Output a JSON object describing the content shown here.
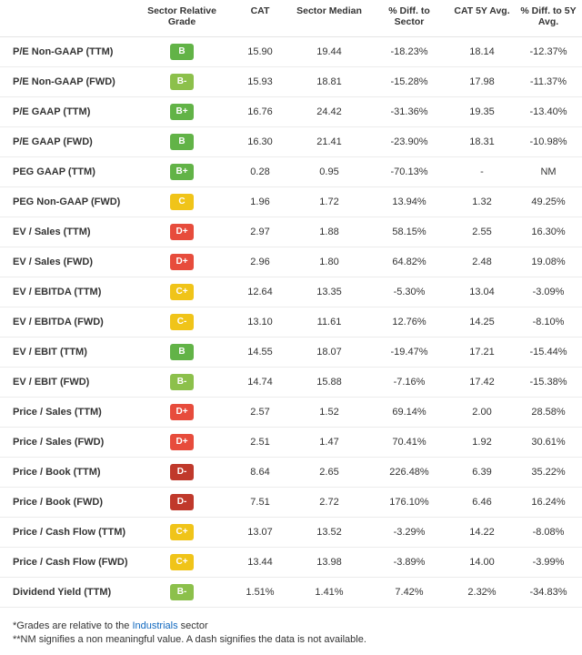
{
  "grade_colors": {
    "A": "#1a9850",
    "A-": "#1a9850",
    "A+": "#1a9850",
    "B": "#62b347",
    "B+": "#62b347",
    "B-": "#8cc04b",
    "C": "#f0c419",
    "C+": "#f0c419",
    "C-": "#f0c419",
    "D": "#e74c3c",
    "D+": "#e74c3c",
    "D-": "#c0392b",
    "F": "#a93226"
  },
  "columns": {
    "metric": "",
    "grade": "Sector Relative Grade",
    "cat": "CAT",
    "median": "Sector Median",
    "diff_sector": "% Diff. to Sector",
    "cat_5y": "CAT 5Y Avg.",
    "diff_5y": "% Diff. to 5Y Avg."
  },
  "col_widths": {
    "metric": 146,
    "grade": 108,
    "cat": 64,
    "median": 88,
    "diff_sector": 88,
    "cat_5y": 72,
    "diff_5y": 74
  },
  "rows": [
    {
      "metric": "P/E Non-GAAP (TTM)",
      "grade": "B",
      "cat": "15.90",
      "median": "19.44",
      "diff_sector": "-18.23%",
      "cat_5y": "18.14",
      "diff_5y": "-12.37%"
    },
    {
      "metric": "P/E Non-GAAP (FWD)",
      "grade": "B-",
      "cat": "15.93",
      "median": "18.81",
      "diff_sector": "-15.28%",
      "cat_5y": "17.98",
      "diff_5y": "-11.37%"
    },
    {
      "metric": "P/E GAAP (TTM)",
      "grade": "B+",
      "cat": "16.76",
      "median": "24.42",
      "diff_sector": "-31.36%",
      "cat_5y": "19.35",
      "diff_5y": "-13.40%"
    },
    {
      "metric": "P/E GAAP (FWD)",
      "grade": "B",
      "cat": "16.30",
      "median": "21.41",
      "diff_sector": "-23.90%",
      "cat_5y": "18.31",
      "diff_5y": "-10.98%"
    },
    {
      "metric": "PEG GAAP (TTM)",
      "grade": "B+",
      "cat": "0.28",
      "median": "0.95",
      "diff_sector": "-70.13%",
      "cat_5y": "-",
      "diff_5y": "NM"
    },
    {
      "metric": "PEG Non-GAAP (FWD)",
      "grade": "C",
      "cat": "1.96",
      "median": "1.72",
      "diff_sector": "13.94%",
      "cat_5y": "1.32",
      "diff_5y": "49.25%"
    },
    {
      "metric": "EV / Sales (TTM)",
      "grade": "D+",
      "cat": "2.97",
      "median": "1.88",
      "diff_sector": "58.15%",
      "cat_5y": "2.55",
      "diff_5y": "16.30%"
    },
    {
      "metric": "EV / Sales (FWD)",
      "grade": "D+",
      "cat": "2.96",
      "median": "1.80",
      "diff_sector": "64.82%",
      "cat_5y": "2.48",
      "diff_5y": "19.08%"
    },
    {
      "metric": "EV / EBITDA (TTM)",
      "grade": "C+",
      "cat": "12.64",
      "median": "13.35",
      "diff_sector": "-5.30%",
      "cat_5y": "13.04",
      "diff_5y": "-3.09%"
    },
    {
      "metric": "EV / EBITDA (FWD)",
      "grade": "C-",
      "cat": "13.10",
      "median": "11.61",
      "diff_sector": "12.76%",
      "cat_5y": "14.25",
      "diff_5y": "-8.10%"
    },
    {
      "metric": "EV / EBIT (TTM)",
      "grade": "B",
      "cat": "14.55",
      "median": "18.07",
      "diff_sector": "-19.47%",
      "cat_5y": "17.21",
      "diff_5y": "-15.44%"
    },
    {
      "metric": "EV / EBIT (FWD)",
      "grade": "B-",
      "cat": "14.74",
      "median": "15.88",
      "diff_sector": "-7.16%",
      "cat_5y": "17.42",
      "diff_5y": "-15.38%"
    },
    {
      "metric": "Price / Sales (TTM)",
      "grade": "D+",
      "cat": "2.57",
      "median": "1.52",
      "diff_sector": "69.14%",
      "cat_5y": "2.00",
      "diff_5y": "28.58%"
    },
    {
      "metric": "Price / Sales (FWD)",
      "grade": "D+",
      "cat": "2.51",
      "median": "1.47",
      "diff_sector": "70.41%",
      "cat_5y": "1.92",
      "diff_5y": "30.61%"
    },
    {
      "metric": "Price / Book (TTM)",
      "grade": "D-",
      "cat": "8.64",
      "median": "2.65",
      "diff_sector": "226.48%",
      "cat_5y": "6.39",
      "diff_5y": "35.22%"
    },
    {
      "metric": "Price / Book (FWD)",
      "grade": "D-",
      "cat": "7.51",
      "median": "2.72",
      "diff_sector": "176.10%",
      "cat_5y": "6.46",
      "diff_5y": "16.24%"
    },
    {
      "metric": "Price / Cash Flow (TTM)",
      "grade": "C+",
      "cat": "13.07",
      "median": "13.52",
      "diff_sector": "-3.29%",
      "cat_5y": "14.22",
      "diff_5y": "-8.08%"
    },
    {
      "metric": "Price / Cash Flow (FWD)",
      "grade": "C+",
      "cat": "13.44",
      "median": "13.98",
      "diff_sector": "-3.89%",
      "cat_5y": "14.00",
      "diff_5y": "-3.99%"
    },
    {
      "metric": "Dividend Yield (TTM)",
      "grade": "B-",
      "cat": "1.51%",
      "median": "1.41%",
      "diff_sector": "7.42%",
      "cat_5y": "2.32%",
      "diff_5y": "-34.83%"
    }
  ],
  "footnotes": {
    "line1_prefix": "*Grades are relative to the ",
    "line1_link": "Industrials",
    "line1_suffix": " sector",
    "line2": "**NM signifies a non meaningful value. A dash signifies the data is not available."
  }
}
